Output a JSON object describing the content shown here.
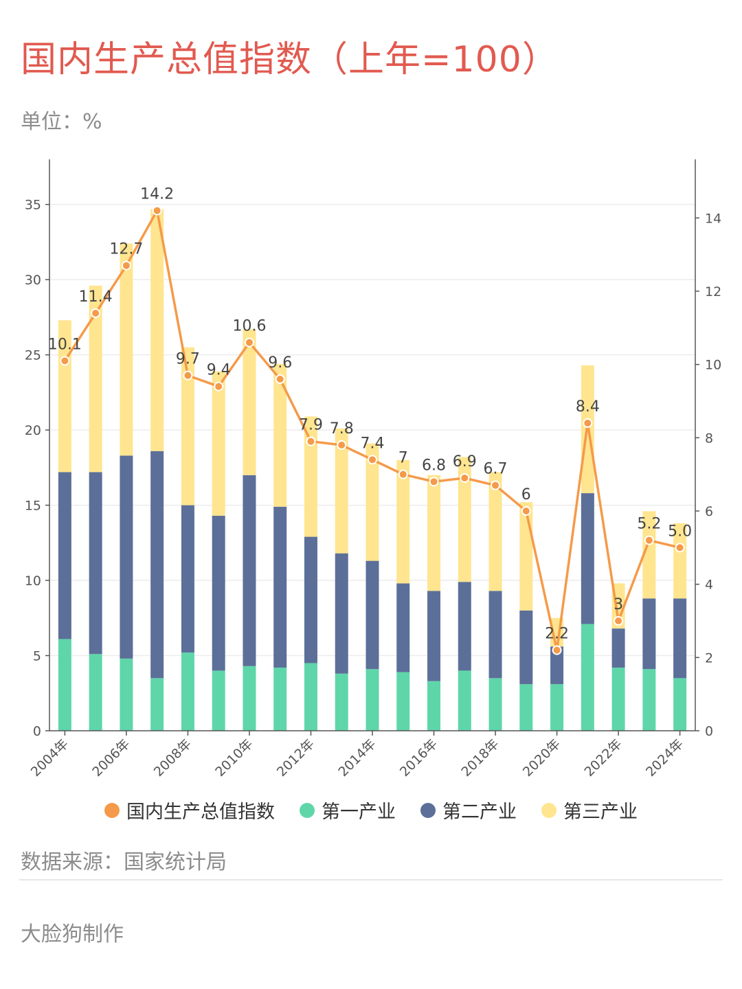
{
  "title": "国内生产总值指数（上年=100）",
  "unit": "单位：%",
  "source": "数据来源：国家统计局",
  "maker": "大脸狗制作",
  "colors": {
    "gdp": "#f59a4a",
    "primary": "#5fd6a9",
    "secondary": "#5b6f99",
    "tertiary": "#ffe58f"
  },
  "chart_data": {
    "type": "bar",
    "stacked": true,
    "categories": [
      "2004年",
      "2005年",
      "2006年",
      "2007年",
      "2008年",
      "2009年",
      "2010年",
      "2011年",
      "2012年",
      "2013年",
      "2014年",
      "2015年",
      "2016年",
      "2017年",
      "2018年",
      "2019年",
      "2020年",
      "2021年",
      "2022年",
      "2023年",
      "2024年"
    ],
    "x_tick_labels": [
      "2004年",
      "2006年",
      "2008年",
      "2010年",
      "2012年",
      "2014年",
      "2016年",
      "2018年",
      "2020年",
      "2022年",
      "2024年"
    ],
    "series": [
      {
        "name": "第一产业",
        "axis": "left",
        "values": [
          6.1,
          5.1,
          4.8,
          3.5,
          5.2,
          4.0,
          4.3,
          4.2,
          4.5,
          3.8,
          4.1,
          3.9,
          3.3,
          4.0,
          3.5,
          3.1,
          3.1,
          7.1,
          4.2,
          4.1,
          3.5
        ]
      },
      {
        "name": "第二产业",
        "axis": "left",
        "values": [
          11.1,
          12.1,
          13.5,
          15.1,
          9.8,
          10.3,
          12.7,
          10.7,
          8.4,
          8.0,
          7.2,
          5.9,
          6.0,
          5.9,
          5.8,
          4.9,
          2.5,
          8.7,
          2.6,
          4.7,
          5.3
        ]
      },
      {
        "name": "第三产业",
        "axis": "left",
        "values": [
          10.1,
          12.4,
          14.1,
          16.1,
          10.5,
          9.6,
          9.7,
          9.5,
          8.0,
          8.3,
          7.8,
          8.2,
          7.7,
          8.3,
          7.9,
          7.2,
          1.9,
          8.5,
          3.0,
          5.8,
          5.0
        ]
      },
      {
        "name": "国内生产总值指数",
        "type": "line",
        "axis": "right",
        "values": [
          10.1,
          11.4,
          12.7,
          14.2,
          9.7,
          9.4,
          10.6,
          9.6,
          7.9,
          7.8,
          7.4,
          7,
          6.8,
          6.9,
          6.7,
          6,
          2.2,
          8.4,
          3,
          5.2,
          5.0
        ]
      }
    ],
    "data_labels": [
      "10.1",
      "11.4",
      "12.7",
      "14.2",
      "9.7",
      "9.4",
      "10.6",
      "9.6",
      "7.9",
      "7.8",
      "7.4",
      "7",
      "6.8",
      "6.9",
      "6.7",
      "6",
      "2.2",
      "8.4",
      "3",
      "5.2",
      "5.0"
    ],
    "y_left": {
      "min": 0,
      "max": 38,
      "ticks": [
        0,
        5,
        10,
        15,
        20,
        25,
        30,
        35
      ]
    },
    "y_right": {
      "min": 0,
      "max": 15.6,
      "ticks": [
        0,
        2,
        4,
        6,
        8,
        10,
        12,
        14
      ]
    },
    "grid": true,
    "legend_position": "bottom",
    "legend": [
      "国内生产总值指数",
      "第一产业",
      "第二产业",
      "第三产业"
    ]
  }
}
